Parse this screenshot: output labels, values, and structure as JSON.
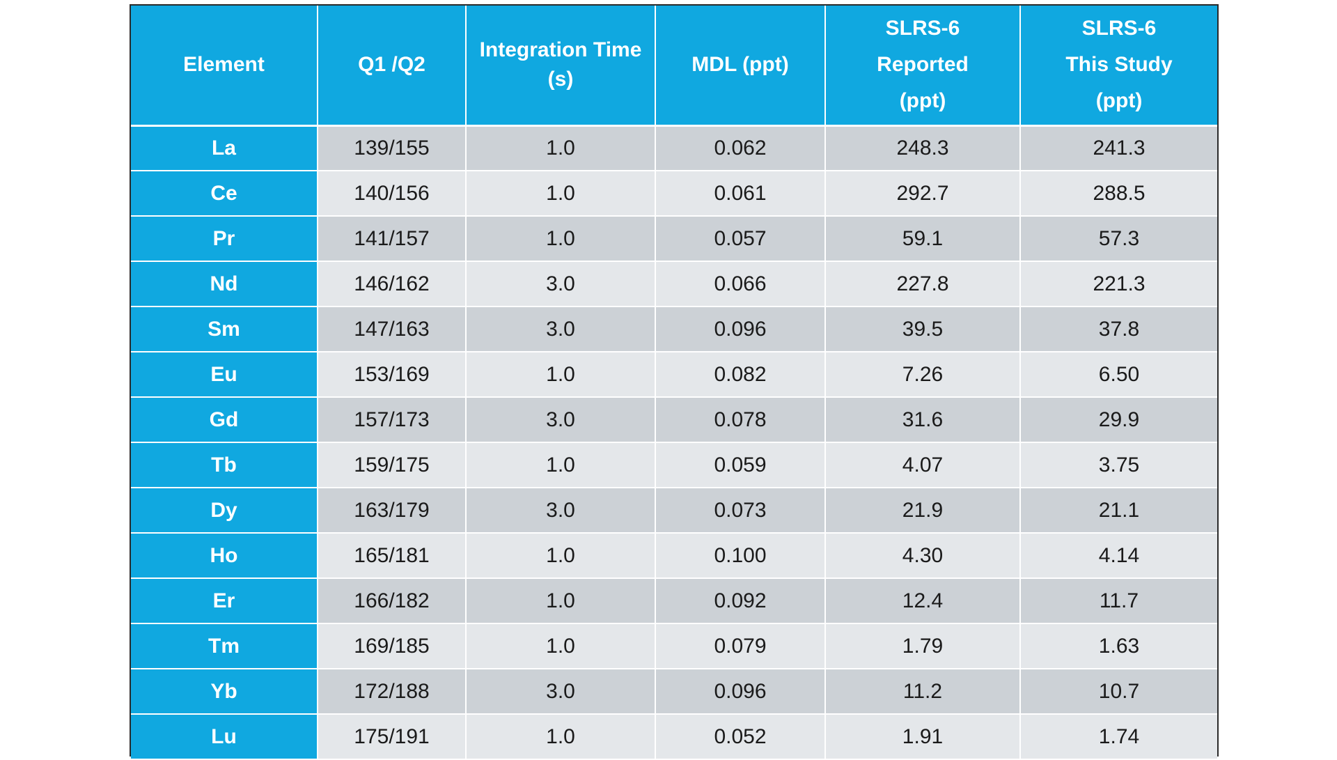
{
  "table": {
    "headers": {
      "element": "Element",
      "q1q2": "Q1 /Q2",
      "integration_time": [
        "Integration Time",
        "(s)"
      ],
      "mdl": "MDL (ppt)",
      "slrs6_reported": [
        "SLRS-6",
        "Reported",
        "(ppt)"
      ],
      "slrs6_this_study": [
        "SLRS-6",
        "This Study",
        "(ppt)"
      ]
    },
    "rows": [
      {
        "element": "La",
        "q1q2": "139/155",
        "integration_time": "1.0",
        "mdl": "0.062",
        "reported": "248.3",
        "this_study": "241.3"
      },
      {
        "element": "Ce",
        "q1q2": "140/156",
        "integration_time": "1.0",
        "mdl": "0.061",
        "reported": "292.7",
        "this_study": "288.5"
      },
      {
        "element": "Pr",
        "q1q2": "141/157",
        "integration_time": "1.0",
        "mdl": "0.057",
        "reported": "59.1",
        "this_study": "57.3"
      },
      {
        "element": "Nd",
        "q1q2": "146/162",
        "integration_time": "3.0",
        "mdl": "0.066",
        "reported": "227.8",
        "this_study": "221.3"
      },
      {
        "element": "Sm",
        "q1q2": "147/163",
        "integration_time": "3.0",
        "mdl": "0.096",
        "reported": "39.5",
        "this_study": "37.8"
      },
      {
        "element": "Eu",
        "q1q2": "153/169",
        "integration_time": "1.0",
        "mdl": "0.082",
        "reported": "7.26",
        "this_study": "6.50"
      },
      {
        "element": "Gd",
        "q1q2": "157/173",
        "integration_time": "3.0",
        "mdl": "0.078",
        "reported": "31.6",
        "this_study": "29.9"
      },
      {
        "element": "Tb",
        "q1q2": "159/175",
        "integration_time": "1.0",
        "mdl": "0.059",
        "reported": "4.07",
        "this_study": "3.75"
      },
      {
        "element": "Dy",
        "q1q2": "163/179",
        "integration_time": "3.0",
        "mdl": "0.073",
        "reported": "21.9",
        "this_study": "21.1"
      },
      {
        "element": "Ho",
        "q1q2": "165/181",
        "integration_time": "1.0",
        "mdl": "0.100",
        "reported": "4.30",
        "this_study": "4.14"
      },
      {
        "element": "Er",
        "q1q2": "166/182",
        "integration_time": "1.0",
        "mdl": "0.092",
        "reported": "12.4",
        "this_study": "11.7"
      },
      {
        "element": "Tm",
        "q1q2": "169/185",
        "integration_time": "1.0",
        "mdl": "0.079",
        "reported": "1.79",
        "this_study": "1.63"
      },
      {
        "element": "Yb",
        "q1q2": "172/188",
        "integration_time": "3.0",
        "mdl": "0.096",
        "reported": "11.2",
        "this_study": "10.7"
      },
      {
        "element": "Lu",
        "q1q2": "175/191",
        "integration_time": "1.0",
        "mdl": "0.052",
        "reported": "1.91",
        "this_study": "1.74"
      }
    ]
  },
  "colors": {
    "header_blue": "#10a8e0",
    "row_dark": "#ccd1d6",
    "row_light": "#e4e7ea",
    "header_text": "#ffffff",
    "cell_text": "#1a1a1a"
  }
}
